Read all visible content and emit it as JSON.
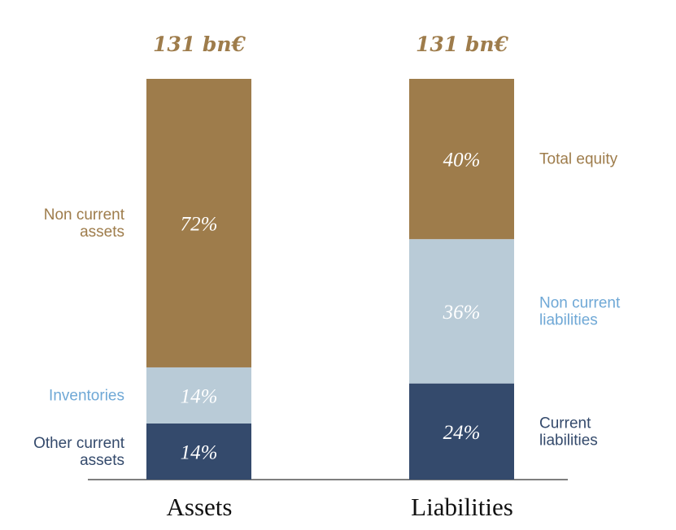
{
  "chart_data": {
    "type": "bar",
    "stacked": true,
    "normalized": true,
    "categories": [
      "Assets",
      "Liabilities"
    ],
    "totals": [
      "131 bn€",
      "131 bn€"
    ],
    "stacks": [
      {
        "category": "Assets",
        "segments": [
          {
            "name": "Other current assets",
            "value": 14,
            "label": "14%",
            "legend": [
              "Other current",
              "assets"
            ],
            "color": "#344a6c",
            "label_color": "#344a6c"
          },
          {
            "name": "Inventories",
            "value": 14,
            "label": "14%",
            "legend": [
              "Inventories"
            ],
            "color": "#b9cbd7",
            "label_color": "#6fa8d6"
          },
          {
            "name": "Non current assets",
            "value": 72,
            "label": "72%",
            "legend": [
              "Non current",
              "assets"
            ],
            "color": "#9e7c4b",
            "label_color": "#9e7c4b"
          }
        ]
      },
      {
        "category": "Liabilities",
        "segments": [
          {
            "name": "Current liabilities",
            "value": 24,
            "label": "24%",
            "legend": [
              "Current",
              "liabilities"
            ],
            "color": "#344a6c",
            "label_color": "#344a6c"
          },
          {
            "name": "Non current liabilities",
            "value": 36,
            "label": "36%",
            "legend": [
              "Non current",
              "liabilities"
            ],
            "color": "#b9cbd7",
            "label_color": "#6fa8d6"
          },
          {
            "name": "Total equity",
            "value": 40,
            "label": "40%",
            "legend": [
              "Total equity"
            ],
            "color": "#9e7c4b",
            "label_color": "#9e7c4b"
          }
        ]
      }
    ],
    "ylim": [
      0,
      100
    ],
    "total_color": "#9e7c4b",
    "axis_color": "#555555"
  }
}
